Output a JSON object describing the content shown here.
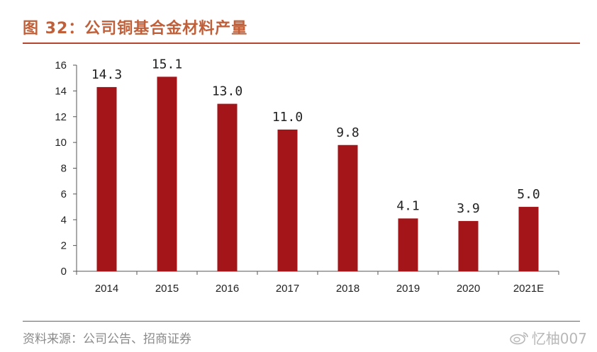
{
  "header": {
    "title": "图 32：公司铜基合金材料产量"
  },
  "footer": {
    "source": "资料来源：公司公告、招商证券",
    "watermark": "忆柚007"
  },
  "colors": {
    "bar": "#a31518",
    "title": "#c0603a",
    "rule": "#b4462f"
  },
  "chart_data": {
    "type": "bar",
    "title": "",
    "xlabel": "",
    "ylabel": "",
    "categories": [
      "2014",
      "2015",
      "2016",
      "2017",
      "2018",
      "2019",
      "2020",
      "2021E"
    ],
    "values": [
      14.3,
      15.1,
      13.0,
      11.0,
      9.8,
      4.1,
      3.9,
      5.0
    ],
    "value_labels": [
      "14.3",
      "15.1",
      "13.0",
      "11.0",
      "9.8",
      "4.1",
      "3.9",
      "5.0"
    ],
    "ylim": [
      0,
      16
    ],
    "yticks": [
      "0",
      "2",
      "4",
      "6",
      "8",
      "10",
      "12",
      "14",
      "16"
    ],
    "grid": false,
    "legend": "none"
  }
}
